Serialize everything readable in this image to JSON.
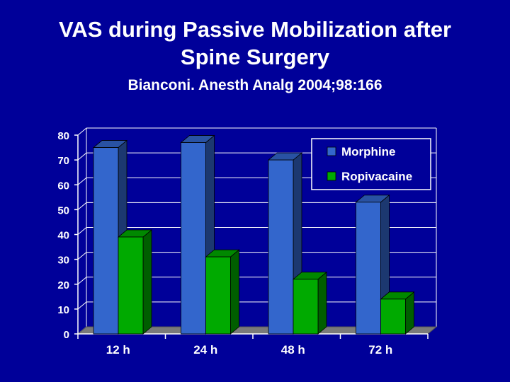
{
  "slide": {
    "title_line1": "VAS during Passive Mobilization after",
    "title_line2": "Spine Surgery",
    "subtitle": "Bianconi.  Anesth Analg 2004;98:166"
  },
  "colors": {
    "background": "#000099",
    "morphine": "#3366cc",
    "ropivacaine": "#00aa00",
    "grid": "#ffffff"
  },
  "chart_data": {
    "type": "bar",
    "categories": [
      "12 h",
      "24 h",
      "48 h",
      "72 h"
    ],
    "series": [
      {
        "name": "Morphine",
        "values": [
          75,
          77,
          70,
          53
        ]
      },
      {
        "name": "Ropivacaine",
        "values": [
          39,
          31,
          22,
          14
        ]
      }
    ],
    "yticks": [
      0,
      10,
      20,
      30,
      40,
      50,
      60,
      70,
      80
    ],
    "ylim": [
      0,
      80
    ],
    "grid": true,
    "legend_position": "top-right",
    "style": "3d"
  }
}
